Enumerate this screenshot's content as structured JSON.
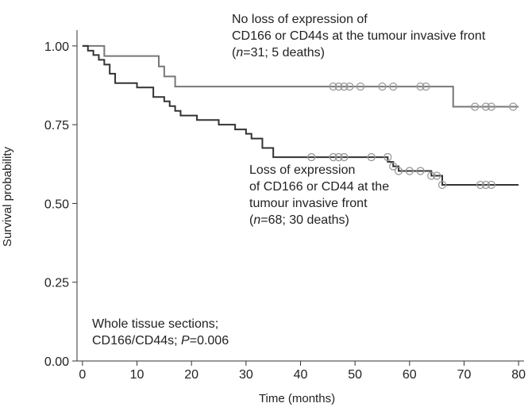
{
  "chart_data": {
    "type": "line",
    "subtype": "kaplan-meier survival curve",
    "xlabel": "Time (months)",
    "ylabel": "Survival probability",
    "xlim": [
      -1,
      81
    ],
    "ylim": [
      0,
      1.04
    ],
    "x_ticks": [
      0,
      10,
      20,
      30,
      40,
      50,
      60,
      70,
      80
    ],
    "y_ticks": [
      0,
      0.25,
      0.5,
      0.75,
      1.0
    ],
    "x_tick_labels": [
      "0",
      "10",
      "20",
      "30",
      "40",
      "50",
      "60",
      "70",
      "80"
    ],
    "y_tick_labels": [
      "0.00",
      "0.25",
      "0.50",
      "0.75",
      "1.00"
    ],
    "grid": false,
    "series": [
      {
        "color": "#777777",
        "steps": [
          [
            0,
            1.0
          ],
          [
            4,
            0.968
          ],
          [
            14,
            0.935
          ],
          [
            15,
            0.903
          ],
          [
            17,
            0.871
          ],
          [
            68,
            0.807
          ],
          [
            80,
            0.807
          ]
        ],
        "censored": [
          [
            46,
            0.871
          ],
          [
            47,
            0.871
          ],
          [
            48,
            0.871
          ],
          [
            49,
            0.871
          ],
          [
            51,
            0.871
          ],
          [
            55,
            0.871
          ],
          [
            57,
            0.871
          ],
          [
            62,
            0.871
          ],
          [
            63,
            0.871
          ],
          [
            72,
            0.807
          ],
          [
            74,
            0.807
          ],
          [
            75,
            0.807
          ],
          [
            79,
            0.807
          ]
        ]
      },
      {
        "color": "#333333",
        "steps": [
          [
            0,
            1.0
          ],
          [
            1,
            0.985
          ],
          [
            2,
            0.971
          ],
          [
            3,
            0.956
          ],
          [
            4,
            0.941
          ],
          [
            5,
            0.912
          ],
          [
            6,
            0.882
          ],
          [
            10,
            0.868
          ],
          [
            13,
            0.838
          ],
          [
            15,
            0.824
          ],
          [
            16,
            0.809
          ],
          [
            17,
            0.794
          ],
          [
            18,
            0.779
          ],
          [
            21,
            0.765
          ],
          [
            25,
            0.75
          ],
          [
            28,
            0.735
          ],
          [
            30,
            0.721
          ],
          [
            31,
            0.706
          ],
          [
            33,
            0.676
          ],
          [
            35,
            0.647
          ],
          [
            56,
            0.632
          ],
          [
            57,
            0.618
          ],
          [
            58,
            0.603
          ],
          [
            64,
            0.588
          ],
          [
            66,
            0.559
          ],
          [
            80,
            0.559
          ]
        ],
        "censored": [
          [
            42,
            0.647
          ],
          [
            46,
            0.647
          ],
          [
            47,
            0.647
          ],
          [
            48,
            0.647
          ],
          [
            53,
            0.647
          ],
          [
            56,
            0.647
          ],
          [
            57,
            0.618
          ],
          [
            58,
            0.603
          ],
          [
            60,
            0.603
          ],
          [
            62,
            0.603
          ],
          [
            64,
            0.588
          ],
          [
            65,
            0.588
          ],
          [
            66,
            0.559
          ],
          [
            73,
            0.559
          ],
          [
            74,
            0.559
          ],
          [
            75,
            0.559
          ]
        ]
      }
    ],
    "annotations": [
      {
        "lines": [
          [
            {
              "t": "No loss of expression of"
            }
          ],
          [
            {
              "t": "CD166 or CD44s at the tumour invasive front"
            }
          ],
          [
            {
              "t": "("
            },
            {
              "t": "n",
              "italic": true
            },
            {
              "t": "=31; 5 deaths)"
            }
          ]
        ]
      },
      {
        "lines": [
          [
            {
              "t": "Loss of expression"
            }
          ],
          [
            {
              "t": "of CD166 or CD44 at the"
            }
          ],
          [
            {
              "t": "tumour invasive front"
            }
          ],
          [
            {
              "t": "("
            },
            {
              "t": "n",
              "italic": true
            },
            {
              "t": "=68; 30 deaths)"
            }
          ]
        ]
      },
      {
        "lines": [
          [
            {
              "t": "Whole tissue sections;"
            }
          ],
          [
            {
              "t": "CD166/CD44s; "
            },
            {
              "t": "P",
              "italic": true
            },
            {
              "t": "=0.006"
            }
          ]
        ]
      }
    ]
  }
}
